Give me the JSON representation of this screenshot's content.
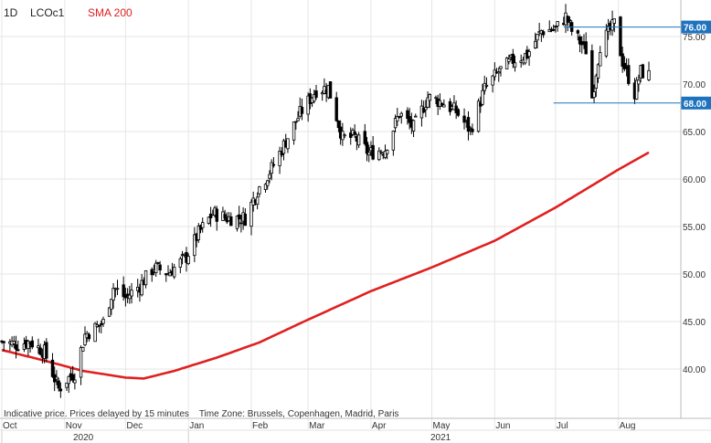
{
  "header": {
    "interval": "1D",
    "symbol": "LCOc1",
    "indicator": "SMA 200"
  },
  "footer_note": "Indicative price. Prices delayed by 15 minutes    Time Zone: Brussels, Copenhagen, Madrid, Paris",
  "colors": {
    "candle": "#000000",
    "sma": "#e02020",
    "level_line": "#1e73be",
    "level_label_bg": "#1e73be",
    "level_label_text": "#ffffff",
    "grid": "#e6e6e6"
  },
  "chart_data": {
    "type": "candlestick",
    "title": "",
    "ylim": [
      36,
      80.5
    ],
    "y_ticks": [
      "40.00",
      "45.00",
      "50.00",
      "55.00",
      "60.00",
      "65.00",
      "70.00",
      "75.00"
    ],
    "x_months": [
      "Oct",
      "Nov",
      "Dec",
      "Jan",
      "Feb",
      "Mar",
      "Apr",
      "May",
      "Jun",
      "Jul",
      "Aug"
    ],
    "x_years": [
      "2020",
      "2021"
    ],
    "levels": [
      {
        "value": 76.0,
        "label": "76.00"
      },
      {
        "value": 68.0,
        "label": "68.00"
      }
    ],
    "close_anchors": [
      [
        "2020-10-01",
        42.9
      ],
      [
        "2020-10-08",
        42.6
      ],
      [
        "2020-10-15",
        42.9
      ],
      [
        "2020-10-22",
        41.8
      ],
      [
        "2020-10-29",
        37.9
      ],
      [
        "2020-11-02",
        38.9
      ],
      [
        "2020-11-06",
        39.6
      ],
      [
        "2020-11-11",
        43.6
      ],
      [
        "2020-11-20",
        44.9
      ],
      [
        "2020-11-25",
        48.6
      ],
      [
        "2020-12-01",
        47.5
      ],
      [
        "2020-12-08",
        48.8
      ],
      [
        "2020-12-15",
        50.7
      ],
      [
        "2020-12-22",
        50.1
      ],
      [
        "2020-12-31",
        51.8
      ],
      [
        "2021-01-06",
        54.3
      ],
      [
        "2021-01-13",
        56.4
      ],
      [
        "2021-01-20",
        55.9
      ],
      [
        "2021-01-29",
        55.9
      ],
      [
        "2021-02-04",
        58.8
      ],
      [
        "2021-02-11",
        61.1
      ],
      [
        "2021-02-18",
        64.0
      ],
      [
        "2021-02-25",
        66.9
      ],
      [
        "2021-03-05",
        69.4
      ],
      [
        "2021-03-11",
        69.6
      ],
      [
        "2021-03-18",
        64.3
      ],
      [
        "2021-03-24",
        64.4
      ],
      [
        "2021-03-31",
        62.7
      ],
      [
        "2021-04-08",
        63.2
      ],
      [
        "2021-04-15",
        66.9
      ],
      [
        "2021-04-22",
        65.4
      ],
      [
        "2021-04-29",
        68.6
      ],
      [
        "2021-05-06",
        68.1
      ],
      [
        "2021-05-13",
        67.1
      ],
      [
        "2021-05-20",
        65.1
      ],
      [
        "2021-05-27",
        69.5
      ],
      [
        "2021-06-03",
        71.3
      ],
      [
        "2021-06-10",
        72.5
      ],
      [
        "2021-06-17",
        73.1
      ],
      [
        "2021-06-24",
        75.6
      ],
      [
        "2021-07-01",
        75.8
      ],
      [
        "2021-07-06",
        77.1
      ],
      [
        "2021-07-09",
        75.6
      ],
      [
        "2021-07-16",
        73.6
      ],
      [
        "2021-07-19",
        68.6
      ],
      [
        "2021-07-23",
        74.1
      ],
      [
        "2021-07-30",
        76.3
      ],
      [
        "2021-08-03",
        72.4
      ],
      [
        "2021-08-09",
        69.0
      ],
      [
        "2021-08-12",
        71.3
      ],
      [
        "2021-08-16",
        70.9
      ]
    ],
    "sma200": [
      [
        "2020-10-01",
        42.0
      ],
      [
        "2020-10-20",
        41.0
      ],
      [
        "2020-11-10",
        39.8
      ],
      [
        "2020-12-01",
        39.1
      ],
      [
        "2020-12-10",
        39.0
      ],
      [
        "2020-12-25",
        39.8
      ],
      [
        "2021-01-15",
        41.2
      ],
      [
        "2021-02-05",
        42.8
      ],
      [
        "2021-03-01",
        45.2
      ],
      [
        "2021-04-01",
        48.2
      ],
      [
        "2021-05-01",
        50.7
      ],
      [
        "2021-06-01",
        53.5
      ],
      [
        "2021-07-01",
        57.0
      ],
      [
        "2021-08-01",
        61.0
      ],
      [
        "2021-08-16",
        62.8
      ]
    ]
  }
}
